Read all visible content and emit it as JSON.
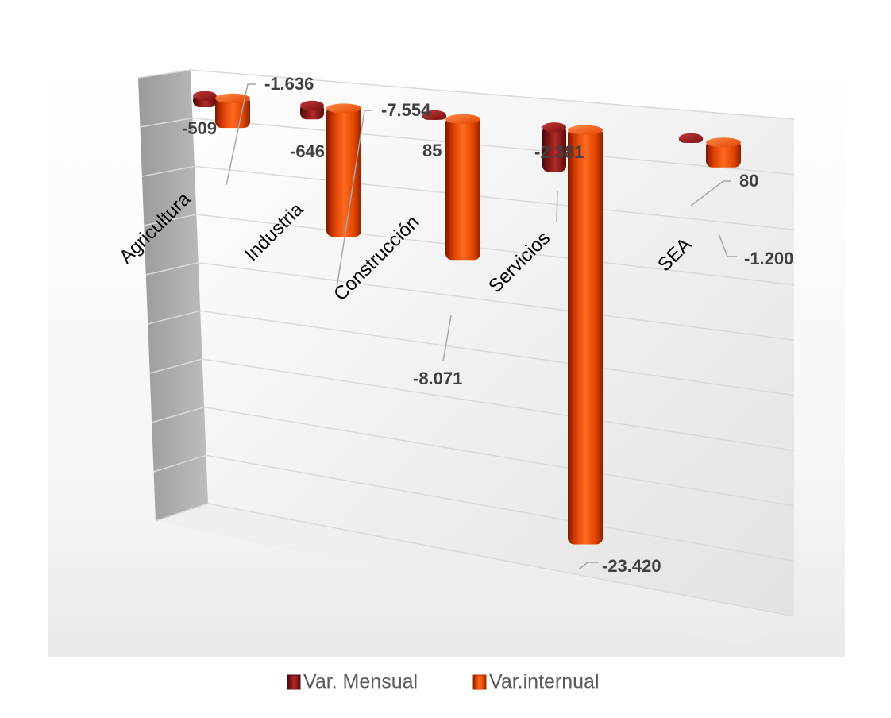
{
  "chart_data": {
    "type": "bar",
    "title": "",
    "xlabel": "",
    "ylabel": "",
    "categories": [
      "Agricultura",
      "Industria",
      "Construcción",
      "Servicios",
      "SEA"
    ],
    "series": [
      {
        "name": "Var. Mensual",
        "values": [
          -509,
          -646,
          85,
          -2381,
          80
        ],
        "labels": [
          "-509",
          "-646",
          "85",
          "-2.381",
          "80"
        ]
      },
      {
        "name": "Var.internual",
        "values": [
          -1636,
          -7554,
          -8071,
          -23420,
          -1200
        ],
        "labels": [
          "-1.636",
          "-7.554",
          "-8.071",
          "-23.420",
          "-1.200"
        ]
      }
    ],
    "ylim": [
      -25000,
      2000
    ],
    "grid": true,
    "legend": "bottom",
    "colors": {
      "series0": "#8b1a1a",
      "series1": "#e84a0c"
    }
  }
}
